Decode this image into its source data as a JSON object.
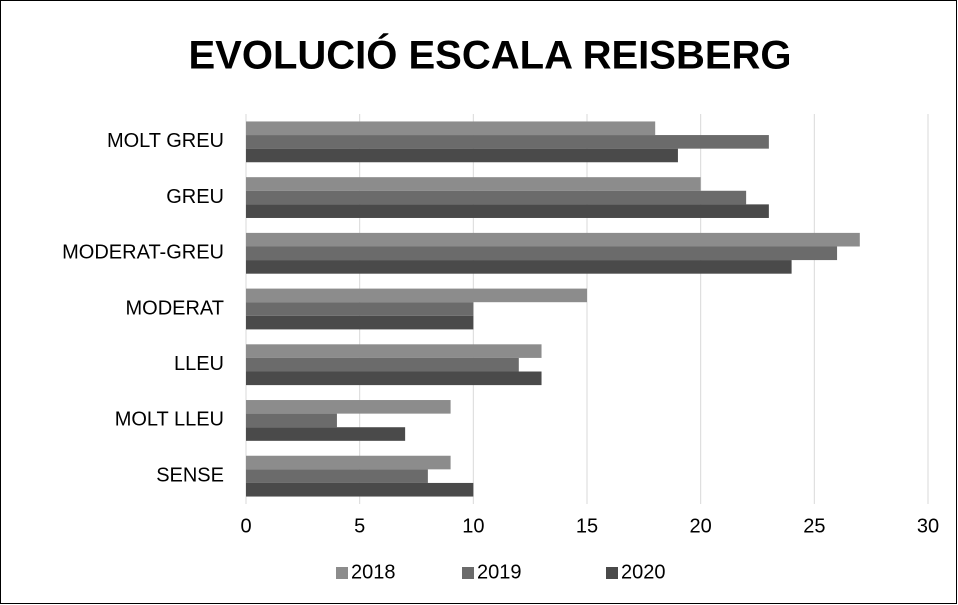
{
  "chart_data": {
    "type": "bar",
    "orientation": "horizontal",
    "title": "EVOLUCIÓ ESCALA REISBERG",
    "categories": [
      "MOLT GREU",
      "GREU",
      "MODERAT-GREU",
      "MODERAT",
      "LLEU",
      "MOLT LLEU",
      "SENSE"
    ],
    "series": [
      {
        "name": "2018",
        "color": "#8c8c8c",
        "values": [
          18,
          20,
          27,
          15,
          13,
          9,
          9
        ]
      },
      {
        "name": "2019",
        "color": "#6b6b6b",
        "values": [
          23,
          22,
          26,
          10,
          12,
          4,
          8
        ]
      },
      {
        "name": "2020",
        "color": "#4a4a4a",
        "values": [
          19,
          23,
          24,
          10,
          13,
          7,
          10
        ]
      }
    ],
    "xlim": [
      0,
      30
    ],
    "xticks": [
      0,
      5,
      10,
      15,
      20,
      25,
      30
    ],
    "grid": true,
    "legend": "bottom"
  }
}
